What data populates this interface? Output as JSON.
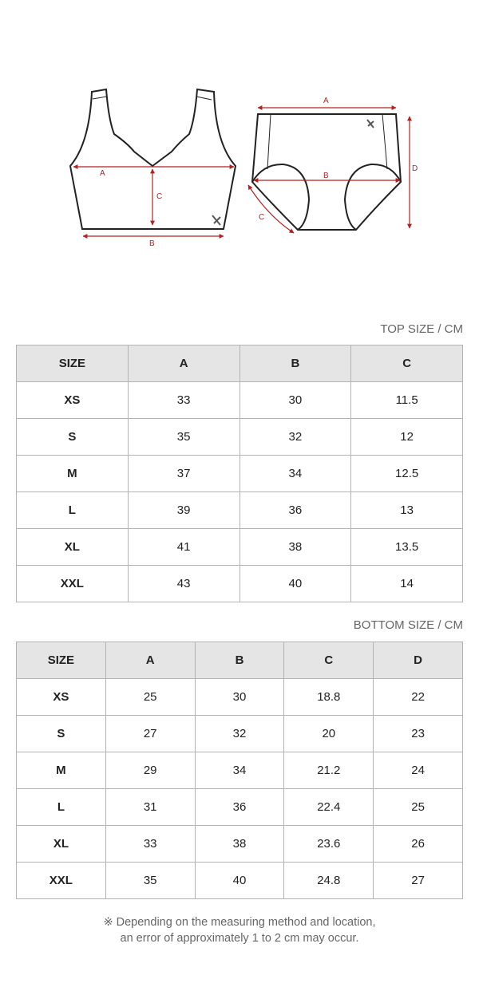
{
  "diagram": {
    "top_labels": {
      "a": "A",
      "b": "B",
      "c": "C"
    },
    "bottom_labels": {
      "a": "A",
      "b": "B",
      "c": "C",
      "d": "D"
    },
    "measure_color": "#b22222"
  },
  "top_table": {
    "caption": "TOP SIZE / CM",
    "headers": [
      "SIZE",
      "A",
      "B",
      "C"
    ],
    "rows": [
      [
        "XS",
        "33",
        "30",
        "11.5"
      ],
      [
        "S",
        "35",
        "32",
        "12"
      ],
      [
        "M",
        "37",
        "34",
        "12.5"
      ],
      [
        "L",
        "39",
        "36",
        "13"
      ],
      [
        "XL",
        "41",
        "38",
        "13.5"
      ],
      [
        "XXL",
        "43",
        "40",
        "14"
      ]
    ]
  },
  "bottom_table": {
    "caption": "BOTTOM SIZE / CM",
    "headers": [
      "SIZE",
      "A",
      "B",
      "C",
      "D"
    ],
    "rows": [
      [
        "XS",
        "25",
        "30",
        "18.8",
        "22"
      ],
      [
        "S",
        "27",
        "32",
        "20",
        "23"
      ],
      [
        "M",
        "29",
        "34",
        "21.2",
        "24"
      ],
      [
        "L",
        "31",
        "36",
        "22.4",
        "25"
      ],
      [
        "XL",
        "33",
        "38",
        "23.6",
        "26"
      ],
      [
        "XXL",
        "35",
        "40",
        "24.8",
        "27"
      ]
    ]
  },
  "note": {
    "line1": "※ Depending on the measuring method and location,",
    "line2": "an error of approximately 1 to 2 cm may occur."
  }
}
